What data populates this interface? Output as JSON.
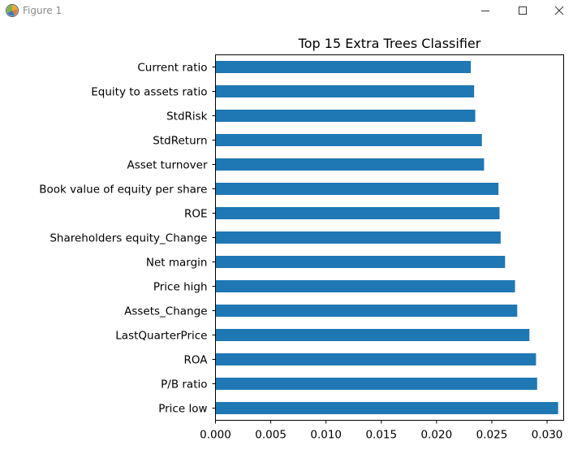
{
  "window": {
    "title": "Figure 1",
    "icons": {
      "app": "matplotlib-figure-icon",
      "minimize": "minimize-icon",
      "maximize": "maximize-icon",
      "close": "close-icon"
    }
  },
  "chart_data": {
    "type": "bar",
    "orientation": "horizontal",
    "title": "Top 15 Extra Trees Classifier",
    "xlabel": "",
    "ylabel": "",
    "xlim": [
      0.0,
      0.0315
    ],
    "xticks": [
      0.0,
      0.005,
      0.01,
      0.015,
      0.02,
      0.025,
      0.03
    ],
    "xtick_labels": [
      "0.000",
      "0.005",
      "0.010",
      "0.015",
      "0.020",
      "0.025",
      "0.030"
    ],
    "bar_color": "#1f77b4",
    "grid": false,
    "legend": "none",
    "categories": [
      "Current ratio",
      "Equity to assets ratio",
      "StdRisk",
      "StdReturn",
      "Asset turnover",
      "Book value of equity per share",
      "ROE",
      "Shareholders equity_Change",
      "Net margin",
      "Price high",
      "Assets_Change",
      "LastQuarterPrice",
      "ROA",
      "P/B ratio",
      "Price low"
    ],
    "values": [
      0.0231,
      0.0234,
      0.0235,
      0.0241,
      0.0243,
      0.0256,
      0.0257,
      0.0258,
      0.0262,
      0.0271,
      0.0273,
      0.0284,
      0.029,
      0.0291,
      0.031
    ]
  }
}
